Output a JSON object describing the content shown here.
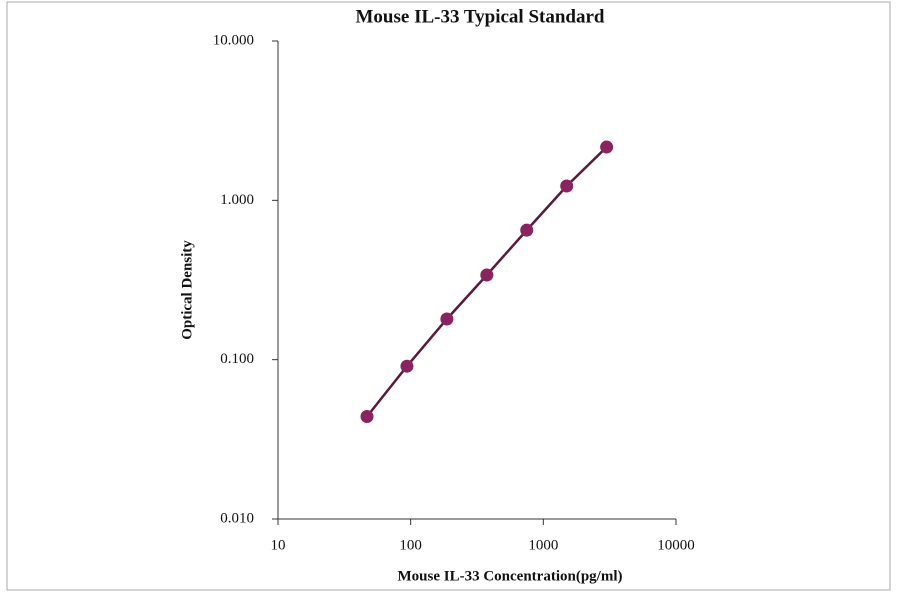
{
  "chart_data": {
    "type": "line",
    "title": "Mouse IL-33 Typical  Standard",
    "x_label": "Mouse IL-33 Concentration(pg/ml)",
    "y_label": "Optical Density",
    "x": [
      46.88,
      93.75,
      187.5,
      375,
      750,
      1500,
      3000
    ],
    "values": [
      0.044,
      0.091,
      0.18,
      0.34,
      0.65,
      1.23,
      2.16
    ],
    "color": "#5a1a3c",
    "marker_color": "#8a2460",
    "xscale": "log",
    "yscale": "log",
    "xlim": [
      10,
      10000
    ],
    "ylim": [
      0.01,
      10
    ],
    "xticks": [
      10,
      100,
      1000,
      10000
    ],
    "yticks": [
      {
        "value": 10,
        "label": "10.000"
      },
      {
        "value": 1,
        "label": "1.000"
      },
      {
        "value": 0.1,
        "label": "0.100"
      },
      {
        "value": 0.01,
        "label": "0.010"
      }
    ],
    "grid": false
  }
}
